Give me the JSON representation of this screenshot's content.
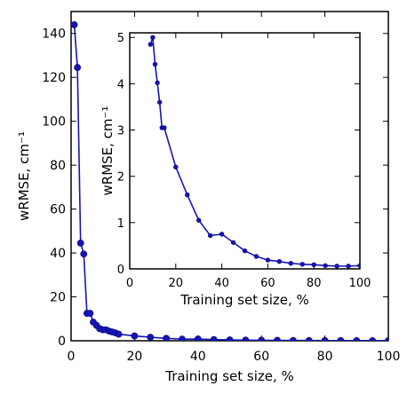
{
  "chart_data": [
    {
      "type": "line",
      "role": "main",
      "xlabel": "Training set size, %",
      "ylabel": "wRMSE, cm⁻¹",
      "xlim": [
        0,
        100
      ],
      "ylim": [
        0,
        150
      ],
      "xticks": [
        0,
        20,
        40,
        60,
        80,
        100
      ],
      "yticks": [
        0,
        20,
        40,
        60,
        80,
        100,
        120,
        140
      ],
      "grid": false,
      "color": "#1515b5",
      "series": [
        {
          "x": [
            1,
            2,
            3,
            4,
            5,
            6,
            7,
            8,
            9,
            10,
            11,
            12,
            13,
            14,
            15,
            20,
            25,
            30,
            35,
            40,
            45,
            50,
            55,
            60,
            65,
            70,
            75,
            80,
            85,
            90,
            95,
            100
          ],
          "y": [
            144,
            124.5,
            44.5,
            39.5,
            12.5,
            12.5,
            8.5,
            7,
            5.5,
            5,
            5,
            4.4,
            4,
            3.6,
            3.0,
            2.2,
            1.6,
            1.1,
            0.75,
            0.8,
            0.55,
            0.4,
            0.3,
            0.25,
            0.2,
            0.15,
            0.12,
            0.1,
            0.08,
            0.07,
            0.06,
            0.05
          ]
        }
      ]
    },
    {
      "type": "line",
      "role": "inset",
      "xlabel": "Training set size, %",
      "ylabel": "wRMSE, cm⁻¹",
      "xlim": [
        0,
        100
      ],
      "ylim": [
        0,
        5.1
      ],
      "xticks": [
        0,
        20,
        40,
        60,
        80,
        100
      ],
      "yticks": [
        0,
        1,
        2,
        3,
        4,
        5
      ],
      "grid": false,
      "color": "#1515b5",
      "series": [
        {
          "x": [
            9,
            10,
            11,
            12,
            13,
            14,
            15,
            20,
            25,
            30,
            35,
            40,
            45,
            50,
            55,
            60,
            65,
            70,
            75,
            80,
            85,
            90,
            95,
            100
          ],
          "y": [
            4.85,
            5.0,
            4.42,
            4.02,
            3.6,
            3.05,
            3.05,
            2.2,
            1.6,
            1.05,
            0.72,
            0.75,
            0.57,
            0.39,
            0.27,
            0.19,
            0.16,
            0.12,
            0.1,
            0.09,
            0.07,
            0.06,
            0.06,
            0.07
          ]
        }
      ]
    }
  ]
}
